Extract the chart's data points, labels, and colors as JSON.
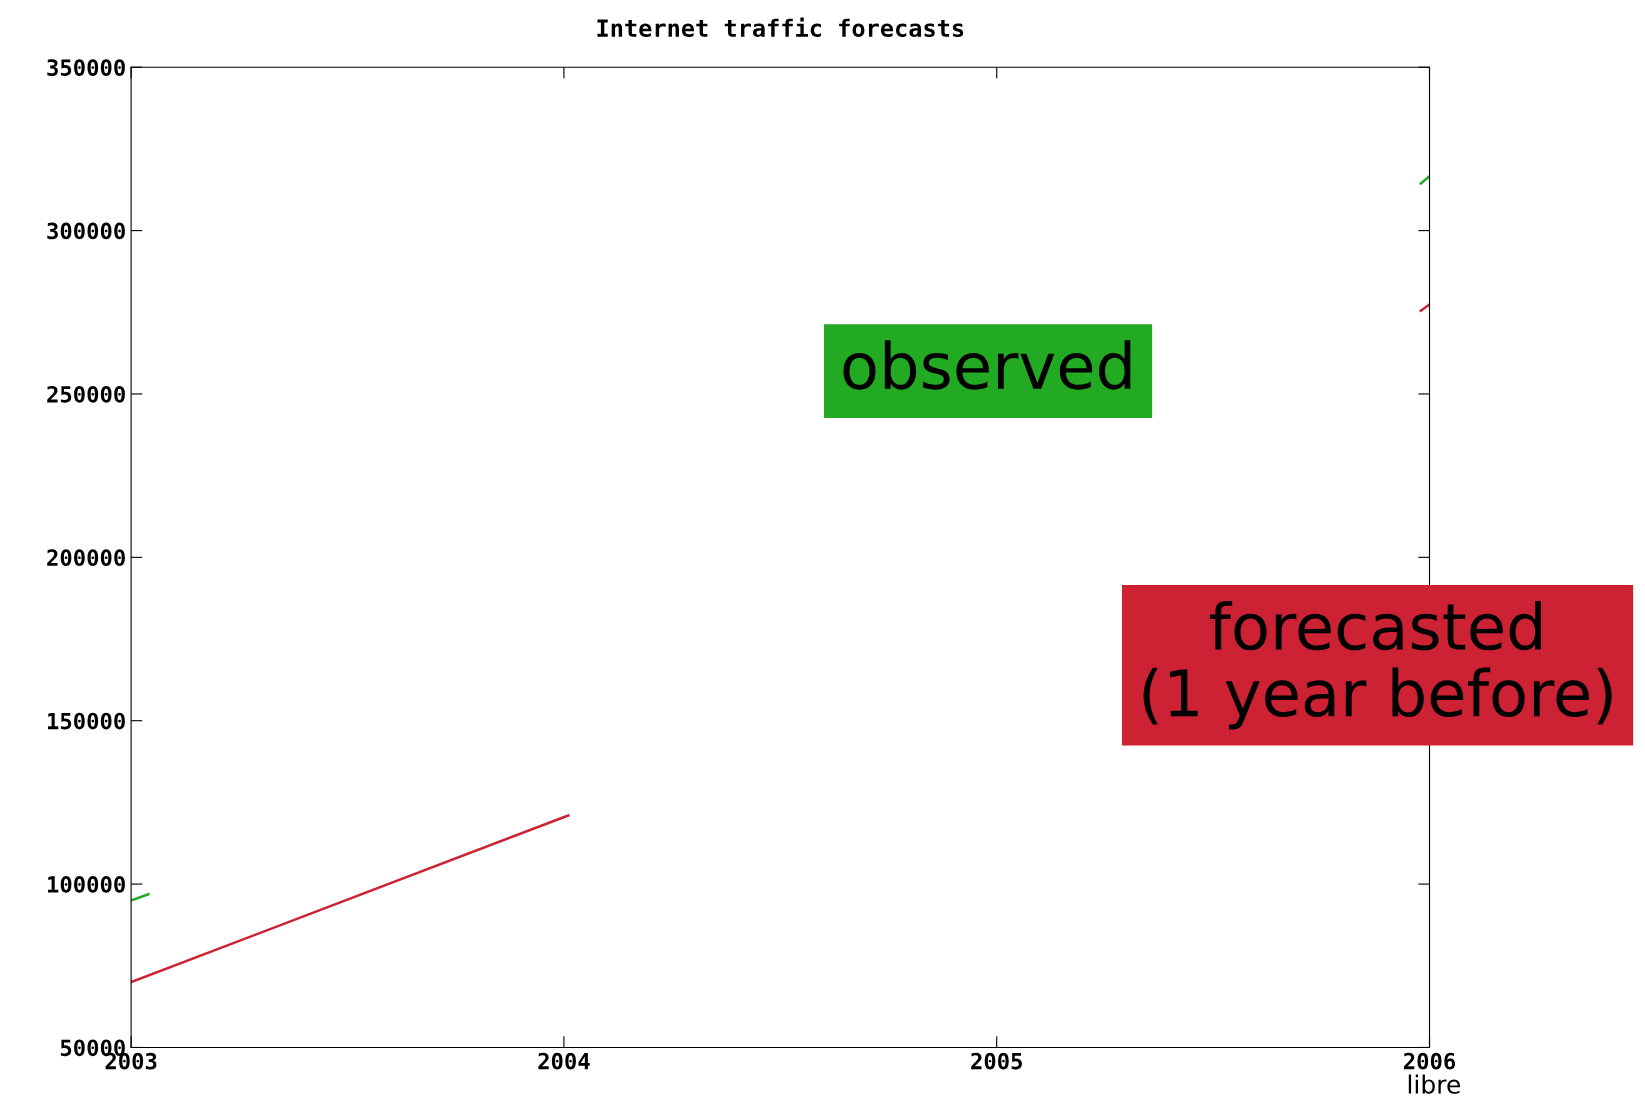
{
  "chart_data": {
    "type": "line",
    "title": "Internet traffic forecasts",
    "xlim": [
      2003,
      2006
    ],
    "xticks": [
      2003,
      2004,
      2005,
      2006
    ],
    "ylim": [
      50000,
      350000
    ],
    "yticks": [
      50000,
      100000,
      150000,
      200000,
      250000,
      300000,
      350000
    ],
    "grid": false,
    "legend": false,
    "series": [
      {
        "name": "observed",
        "color": "#22aa22",
        "x": [
          2003,
          2003.04,
          2005,
          2005.98,
          2006
        ],
        "values": [
          95000,
          96900,
          null,
          314400,
          316600
        ]
      },
      {
        "name": "forecasted\n(1 year before)",
        "color": "#cc2233",
        "x": [
          2003,
          2004.01,
          2005,
          2005.98,
          2006
        ],
        "values": [
          70000,
          121000,
          null,
          275500,
          277400
        ]
      }
    ],
    "annotations": [
      "libre"
    ]
  }
}
